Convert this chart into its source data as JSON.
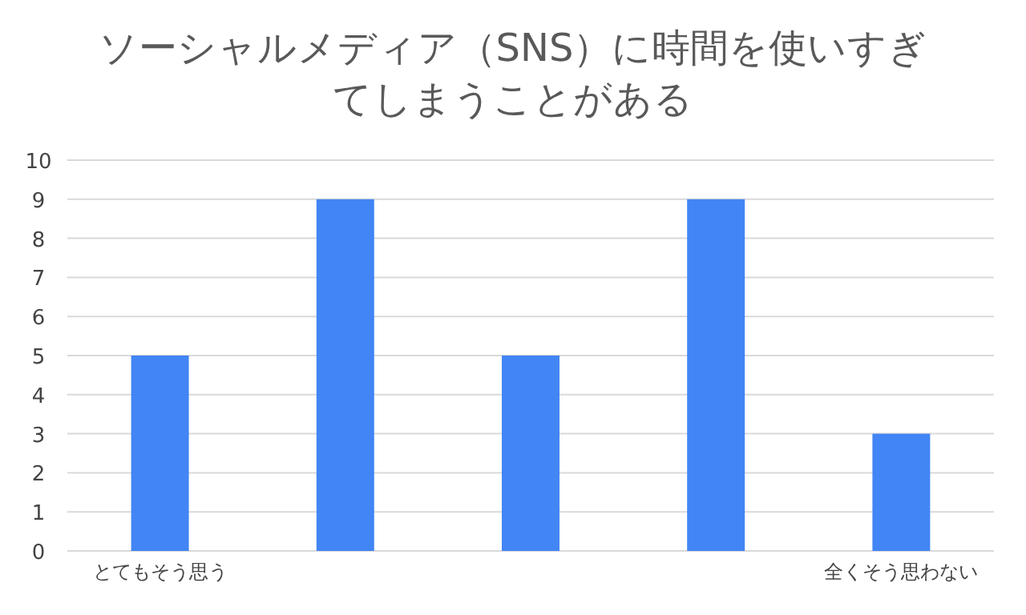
{
  "chart_data": {
    "type": "bar",
    "title": "ソーシャルメディア（SNS）に時間を使いすぎてしまうことがある",
    "categories": [
      "とてもそう思う",
      null,
      null,
      null,
      "全くそう思わない"
    ],
    "values": [
      5,
      9,
      5,
      9,
      3
    ],
    "color": "#4285f4",
    "ylim": [
      0,
      10
    ],
    "yticks": [
      0,
      1,
      2,
      3,
      4,
      5,
      6,
      7,
      8,
      9,
      10
    ],
    "grid": "y"
  }
}
